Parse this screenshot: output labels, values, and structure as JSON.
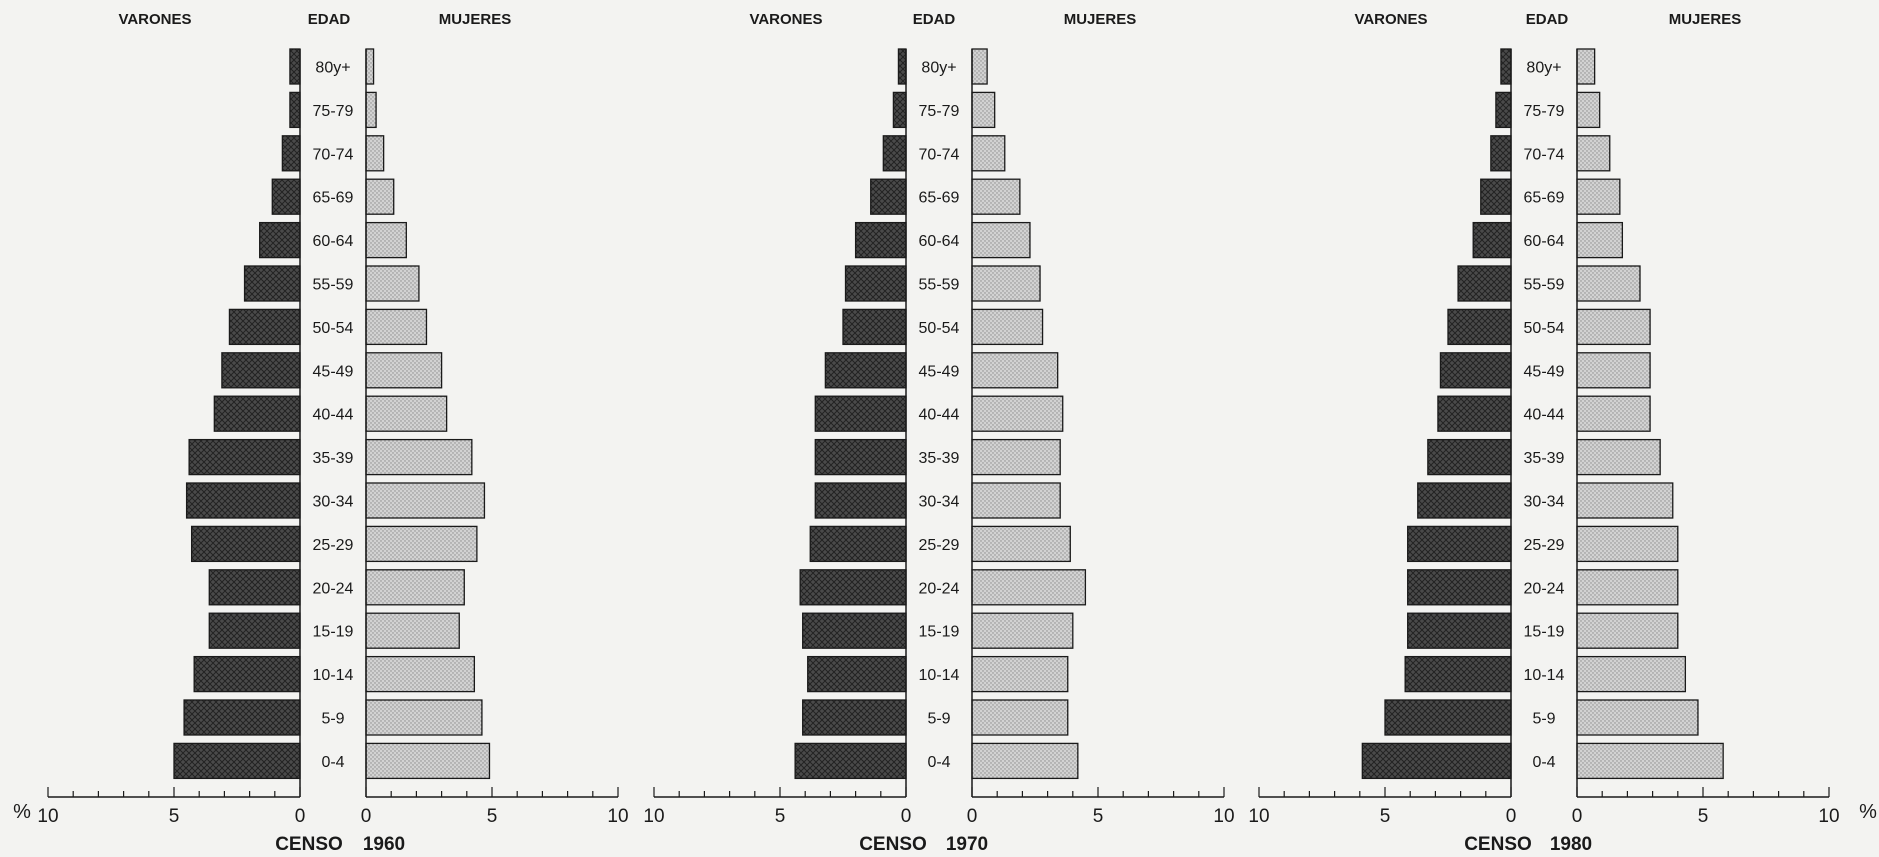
{
  "figure": {
    "header_left": "VARONES",
    "header_mid": "EDAD",
    "header_right": "MUJERES",
    "unit_left": "%",
    "unit_right": "%",
    "census_label": "CENSO"
  },
  "colors": {
    "background": "#f3f3f1",
    "male_fill": "#4a4a4a",
    "female_fill": "#d2d2d2",
    "ink": "#1a1a1a"
  },
  "chart_data": [
    {
      "type": "bar",
      "orientation": "population-pyramid",
      "title": "1960",
      "xlim": [
        0,
        10
      ],
      "x_ticks": [
        "10",
        "5",
        "0",
        "0",
        "5",
        "10"
      ],
      "categories": [
        "80y+",
        "75-79",
        "70-74",
        "65-69",
        "60-64",
        "55-59",
        "50-54",
        "45-49",
        "40-44",
        "35-39",
        "30-34",
        "25-29",
        "20-24",
        "15-19",
        "10-14",
        "5-9",
        "0-4"
      ],
      "series": [
        {
          "name": "VARONES",
          "values": [
            0.4,
            0.4,
            0.7,
            1.1,
            1.6,
            2.2,
            2.8,
            3.1,
            3.4,
            4.4,
            4.5,
            4.3,
            3.6,
            3.6,
            4.2,
            4.6,
            5.0
          ]
        },
        {
          "name": "MUJERES",
          "values": [
            0.3,
            0.4,
            0.7,
            1.1,
            1.6,
            2.1,
            2.4,
            3.0,
            3.2,
            4.2,
            4.7,
            4.4,
            3.9,
            3.7,
            4.3,
            4.6,
            4.9
          ]
        }
      ]
    },
    {
      "type": "bar",
      "orientation": "population-pyramid",
      "title": "1970",
      "xlim": [
        0,
        10
      ],
      "x_ticks": [
        "10",
        "5",
        "0",
        "0",
        "5",
        "10"
      ],
      "categories": [
        "80y+",
        "75-79",
        "70-74",
        "65-69",
        "60-64",
        "55-59",
        "50-54",
        "45-49",
        "40-44",
        "35-39",
        "30-34",
        "25-29",
        "20-24",
        "15-19",
        "10-14",
        "5-9",
        "0-4"
      ],
      "series": [
        {
          "name": "VARONES",
          "values": [
            0.3,
            0.5,
            0.9,
            1.4,
            2.0,
            2.4,
            2.5,
            3.2,
            3.6,
            3.6,
            3.6,
            3.8,
            4.2,
            4.1,
            3.9,
            4.1,
            4.4
          ]
        },
        {
          "name": "MUJERES",
          "values": [
            0.6,
            0.9,
            1.3,
            1.9,
            2.3,
            2.7,
            2.8,
            3.4,
            3.6,
            3.5,
            3.5,
            3.9,
            4.5,
            4.0,
            3.8,
            3.8,
            4.2
          ]
        }
      ]
    },
    {
      "type": "bar",
      "orientation": "population-pyramid",
      "title": "1980",
      "xlim": [
        0,
        10
      ],
      "x_ticks": [
        "10",
        "5",
        "0",
        "0",
        "5",
        "10"
      ],
      "categories": [
        "80y+",
        "75-79",
        "70-74",
        "65-69",
        "60-64",
        "55-59",
        "50-54",
        "45-49",
        "40-44",
        "35-39",
        "30-34",
        "25-29",
        "20-24",
        "15-19",
        "10-14",
        "5-9",
        "0-4"
      ],
      "series": [
        {
          "name": "VARONES",
          "values": [
            0.4,
            0.6,
            0.8,
            1.2,
            1.5,
            2.1,
            2.5,
            2.8,
            2.9,
            3.3,
            3.7,
            4.1,
            4.1,
            4.1,
            4.2,
            5.0,
            5.9
          ]
        },
        {
          "name": "MUJERES",
          "values": [
            0.7,
            0.9,
            1.3,
            1.7,
            1.8,
            2.5,
            2.9,
            2.9,
            2.9,
            3.3,
            3.8,
            4.0,
            4.0,
            4.0,
            4.3,
            4.8,
            5.8
          ]
        }
      ]
    }
  ]
}
